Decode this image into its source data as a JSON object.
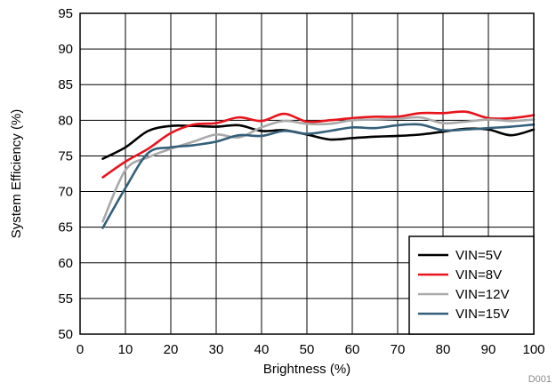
{
  "chart_data": {
    "type": "line",
    "title": "",
    "xlabel": "Brightness (%)",
    "ylabel": "System Efficiency (%)",
    "xlim": [
      0,
      100
    ],
    "ylim": [
      50,
      95
    ],
    "xticks": [
      0,
      10,
      20,
      30,
      40,
      50,
      60,
      70,
      80,
      90,
      100
    ],
    "yticks": [
      50,
      55,
      60,
      65,
      70,
      75,
      80,
      85,
      90,
      95
    ],
    "grid": true,
    "legend_position": "bottom-right",
    "series": [
      {
        "name": "VIN=5V",
        "color": "#000000",
        "x": [
          5,
          10,
          15,
          20,
          25,
          30,
          35,
          40,
          45,
          50,
          55,
          60,
          65,
          70,
          75,
          80,
          85,
          90,
          95,
          100
        ],
        "y": [
          74.6,
          76.2,
          78.5,
          79.2,
          79.2,
          79.1,
          79.3,
          78.5,
          78.6,
          78.0,
          77.3,
          77.5,
          77.7,
          77.8,
          78.0,
          78.4,
          78.8,
          78.7,
          77.9,
          78.7
        ]
      },
      {
        "name": "VIN=8V",
        "color": "#e8141c",
        "x": [
          5,
          10,
          15,
          20,
          25,
          30,
          35,
          40,
          45,
          50,
          55,
          60,
          65,
          70,
          75,
          80,
          85,
          90,
          95,
          100
        ],
        "y": [
          72.0,
          74.2,
          76.0,
          78.2,
          79.4,
          79.6,
          80.4,
          79.9,
          80.9,
          79.8,
          80.0,
          80.3,
          80.5,
          80.5,
          81.0,
          81.0,
          81.2,
          80.3,
          80.3,
          80.7
        ]
      },
      {
        "name": "VIN=12V",
        "color": "#a9a9a9",
        "x": [
          5,
          10,
          15,
          20,
          25,
          30,
          35,
          40,
          45,
          50,
          55,
          60,
          65,
          70,
          75,
          80,
          85,
          90,
          95,
          100
        ],
        "y": [
          65.8,
          73.0,
          74.8,
          76.0,
          77.0,
          78.0,
          77.6,
          79.0,
          79.9,
          79.5,
          79.5,
          80.0,
          80.1,
          80.2,
          80.4,
          79.6,
          79.8,
          80.1,
          79.9,
          80.1
        ]
      },
      {
        "name": "VIN=15V",
        "color": "#34607a",
        "x": [
          5,
          10,
          15,
          20,
          25,
          30,
          35,
          40,
          45,
          50,
          55,
          60,
          65,
          70,
          75,
          80,
          85,
          90,
          95,
          100
        ],
        "y": [
          64.9,
          70.5,
          75.4,
          76.2,
          76.5,
          77.0,
          77.9,
          77.8,
          78.5,
          78.1,
          78.5,
          79.0,
          78.9,
          79.3,
          79.4,
          78.6,
          78.7,
          78.9,
          79.1,
          79.4
        ]
      }
    ],
    "footnote": "D001"
  }
}
